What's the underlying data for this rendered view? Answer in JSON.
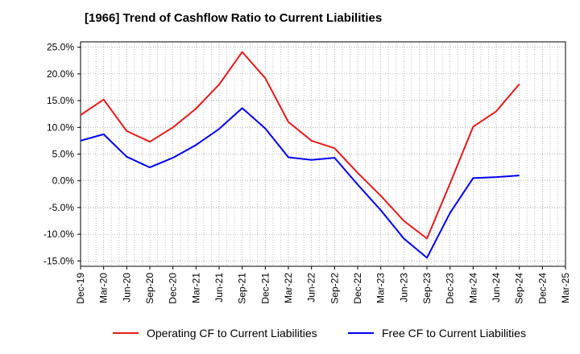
{
  "title": "[1966]  Trend of Cashflow Ratio to Current Liabilities",
  "chart_data": {
    "type": "line",
    "title": "[1966]  Trend of Cashflow Ratio to Current Liabilities",
    "xlabel": "",
    "ylabel": "",
    "x_ticks": [
      "Dec-19",
      "Mar-20",
      "Jun-20",
      "Sep-20",
      "Dec-20",
      "Mar-21",
      "Jun-21",
      "Sep-21",
      "Dec-21",
      "Mar-22",
      "Jun-22",
      "Sep-22",
      "Dec-22",
      "Mar-23",
      "Jun-23",
      "Sep-23",
      "Dec-23",
      "Mar-24",
      "Jun-24",
      "Sep-24",
      "Dec-24",
      "Mar-25"
    ],
    "y_ticks": [
      25,
      20,
      15,
      10,
      5,
      0,
      -5,
      -10,
      -15
    ],
    "y_tick_labels": [
      "25.0%",
      "20.0%",
      "15.0%",
      "10.0%",
      "5.0%",
      "0.0%",
      "-5.0%",
      "-10.0%",
      "-15.0%"
    ],
    "ylim": [
      -16,
      26
    ],
    "grid": true,
    "legend_position": "bottom",
    "series": [
      {
        "name": "Operating CF to Current Liabilities",
        "color": "#e31a1c",
        "points": [
          [
            "Dec-19",
            12.3
          ],
          [
            "Mar-20",
            15.2
          ],
          [
            "Jun-20",
            9.3
          ],
          [
            "Sep-20",
            7.3
          ],
          [
            "Dec-20",
            10.0
          ],
          [
            "Mar-21",
            13.5
          ],
          [
            "Jun-21",
            18.0
          ],
          [
            "Sep-21",
            24.1
          ],
          [
            "Dec-21",
            19.2
          ],
          [
            "Mar-22",
            11.0
          ],
          [
            "Jun-22",
            7.5
          ],
          [
            "Sep-22",
            6.1
          ],
          [
            "Dec-22",
            1.5
          ],
          [
            "Mar-23",
            -2.8
          ],
          [
            "Jun-23",
            -7.5
          ],
          [
            "Sep-23",
            -10.8
          ],
          [
            "Dec-23",
            -0.5
          ],
          [
            "Mar-24",
            10.1
          ],
          [
            "Jun-24",
            13.0
          ],
          [
            "Sep-24",
            18.1
          ]
        ]
      },
      {
        "name": "Free CF to Current Liabilities",
        "color": "#0000ee",
        "points": [
          [
            "Dec-19",
            7.5
          ],
          [
            "Mar-20",
            8.7
          ],
          [
            "Jun-20",
            4.5
          ],
          [
            "Sep-20",
            2.5
          ],
          [
            "Dec-20",
            4.3
          ],
          [
            "Mar-21",
            6.7
          ],
          [
            "Jun-21",
            9.7
          ],
          [
            "Sep-21",
            13.6
          ],
          [
            "Dec-21",
            9.8
          ],
          [
            "Mar-22",
            4.4
          ],
          [
            "Jun-22",
            3.9
          ],
          [
            "Sep-22",
            4.3
          ],
          [
            "Dec-22",
            -0.7
          ],
          [
            "Mar-23",
            -5.5
          ],
          [
            "Jun-23",
            -10.8
          ],
          [
            "Sep-23",
            -14.4
          ],
          [
            "Dec-23",
            -6.0
          ],
          [
            "Mar-24",
            0.5
          ],
          [
            "Jun-24",
            0.7
          ],
          [
            "Sep-24",
            1.0
          ]
        ]
      }
    ]
  }
}
